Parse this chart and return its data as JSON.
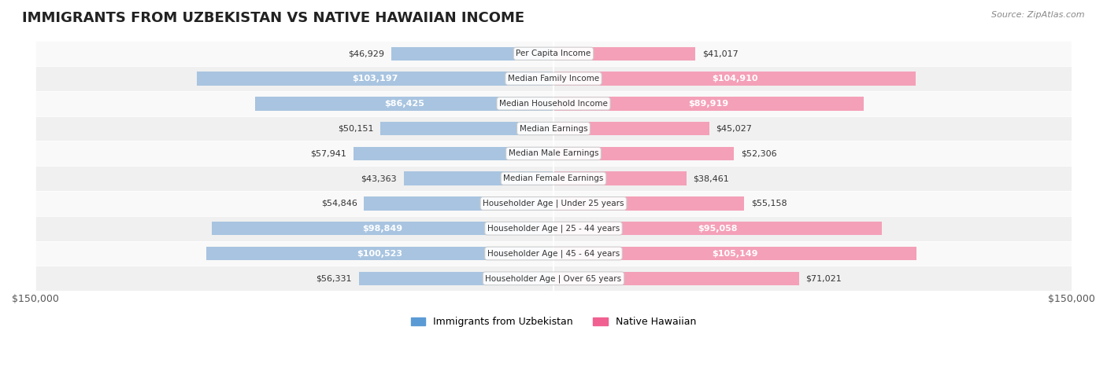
{
  "title": "IMMIGRANTS FROM UZBEKISTAN VS NATIVE HAWAIIAN INCOME",
  "source": "Source: ZipAtlas.com",
  "categories": [
    "Per Capita Income",
    "Median Family Income",
    "Median Household Income",
    "Median Earnings",
    "Median Male Earnings",
    "Median Female Earnings",
    "Householder Age | Under 25 years",
    "Householder Age | 25 - 44 years",
    "Householder Age | 45 - 64 years",
    "Householder Age | Over 65 years"
  ],
  "uzbekistan_values": [
    46929,
    103197,
    86425,
    50151,
    57941,
    43363,
    54846,
    98849,
    100523,
    56331
  ],
  "hawaiian_values": [
    41017,
    104910,
    89919,
    45027,
    52306,
    38461,
    55158,
    95058,
    105149,
    71021
  ],
  "uzbekistan_labels": [
    "$46,929",
    "$103,197",
    "$86,425",
    "$50,151",
    "$57,941",
    "$43,363",
    "$54,846",
    "$98,849",
    "$100,523",
    "$56,331"
  ],
  "hawaiian_labels": [
    "$41,017",
    "$104,910",
    "$89,919",
    "$45,027",
    "$52,306",
    "$38,461",
    "$55,158",
    "$95,058",
    "$105,149",
    "$71,021"
  ],
  "uzbekistan_color_bar": "#a8c4e0",
  "hawaiian_color_bar": "#f4a0b8",
  "uzbekistan_color_solid": "#5b9bd5",
  "hawaiian_color_solid": "#f06090",
  "uzbekistan_label_threshold": 80000,
  "hawaiian_label_threshold": 80000,
  "x_max": 150000,
  "legend_uzbekistan": "Immigrants from Uzbekistan",
  "legend_hawaiian": "Native Hawaiian",
  "background_color": "#f5f5f5",
  "row_bg_light": "#f9f9f9",
  "row_bg_dark": "#f0f0f0"
}
